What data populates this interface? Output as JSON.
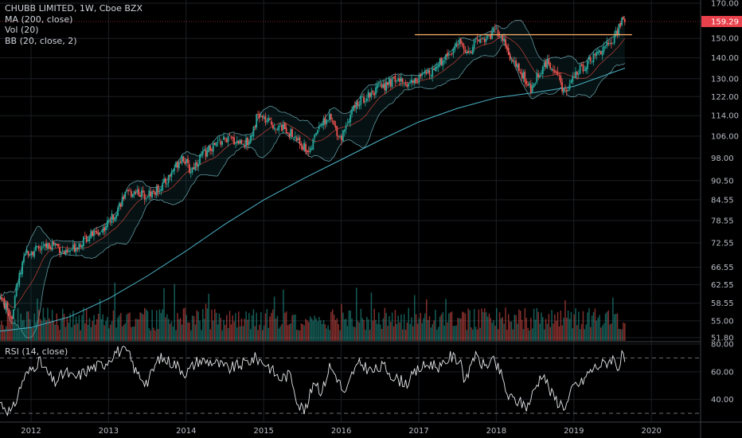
{
  "legend": {
    "title": "CHUBB LIMITED, 1W, Cboe BZX",
    "ma": "MA (200, close)",
    "vol": "Vol (20)",
    "bb": "BB (20, close, 2)"
  },
  "rsi_legend": "RSI (14, close)",
  "colors": {
    "background": "#000000",
    "up": "#26a69a",
    "down": "#ef5350",
    "ma": "#4bb4c8",
    "bb_band": "#7fc6d0",
    "bb_mid": "#d9453d",
    "resistance": "#f0a868",
    "price_badge": "#e8414b",
    "grid": "#1c1f24"
  },
  "chart_data": [
    {
      "type": "candlestick",
      "title": "CHUBB LIMITED, 1W, Cboe BZX",
      "scale": "log",
      "y_ticks": [
        "170.00",
        "159.29",
        "150.00",
        "140.00",
        "130.00",
        "122.00",
        "114.00",
        "106.00",
        "98.00",
        "90.50",
        "84.55",
        "78.55",
        "72.55",
        "66.55",
        "62.55",
        "58.55",
        "55.00",
        "51.80"
      ],
      "y_tick_values": [
        170.0,
        150.0,
        140.0,
        130.0,
        122.0,
        114.0,
        106.0,
        98.0,
        90.5,
        84.55,
        78.55,
        72.55,
        66.55,
        62.55,
        58.55,
        55.0,
        51.8
      ],
      "ylim": [
        51.8,
        170.0
      ],
      "last_price": "159.29",
      "last_price_value": 159.29,
      "x_ticks": [
        "2012",
        "2013",
        "2014",
        "2015",
        "2016",
        "2017",
        "2018",
        "2019",
        "2020"
      ],
      "x_tick_years": [
        2012,
        2013,
        2014,
        2015,
        2016,
        2017,
        2018,
        2019,
        2020
      ],
      "x_range": [
        2011.6,
        2020.6
      ],
      "close_path": [
        [
          2011.6,
          60.0
        ],
        [
          2011.75,
          55.5
        ],
        [
          2011.82,
          62.5
        ],
        [
          2011.95,
          70.5
        ],
        [
          2012.1,
          70.8
        ],
        [
          2012.3,
          72.5
        ],
        [
          2012.45,
          69.5
        ],
        [
          2012.6,
          72.0
        ],
        [
          2012.75,
          74.5
        ],
        [
          2012.9,
          75.5
        ],
        [
          2013.05,
          79.5
        ],
        [
          2013.2,
          85.5
        ],
        [
          2013.35,
          87.5
        ],
        [
          2013.45,
          86.0
        ],
        [
          2013.6,
          87.0
        ],
        [
          2013.75,
          90.5
        ],
        [
          2013.95,
          99.0
        ],
        [
          2014.05,
          93.5
        ],
        [
          2014.2,
          99.0
        ],
        [
          2014.35,
          102.0
        ],
        [
          2014.5,
          105.0
        ],
        [
          2014.6,
          104.5
        ],
        [
          2014.8,
          103.5
        ],
        [
          2014.92,
          114.0
        ],
        [
          2015.05,
          111.5
        ],
        [
          2015.15,
          110.0
        ],
        [
          2015.3,
          108.5
        ],
        [
          2015.45,
          104.0
        ],
        [
          2015.6,
          100.0
        ],
        [
          2015.7,
          110.0
        ],
        [
          2015.85,
          113.0
        ],
        [
          2016.0,
          105.0
        ],
        [
          2016.05,
          110.0
        ],
        [
          2016.15,
          117.0
        ],
        [
          2016.35,
          123.0
        ],
        [
          2016.5,
          126.0
        ],
        [
          2016.7,
          129.5
        ],
        [
          2016.85,
          128.0
        ],
        [
          2017.0,
          130.0
        ],
        [
          2017.2,
          135.0
        ],
        [
          2017.4,
          143.0
        ],
        [
          2017.55,
          147.5
        ],
        [
          2017.65,
          142.0
        ],
        [
          2017.75,
          149.0
        ],
        [
          2017.9,
          151.0
        ],
        [
          2018.0,
          154.0
        ],
        [
          2018.1,
          148.0
        ],
        [
          2018.2,
          138.0
        ],
        [
          2018.35,
          131.0
        ],
        [
          2018.45,
          124.5
        ],
        [
          2018.55,
          133.0
        ],
        [
          2018.65,
          137.5
        ],
        [
          2018.75,
          135.0
        ],
        [
          2018.85,
          126.0
        ],
        [
          2018.9,
          124.0
        ],
        [
          2019.0,
          130.5
        ],
        [
          2019.1,
          135.0
        ],
        [
          2019.25,
          140.5
        ],
        [
          2019.4,
          146.0
        ],
        [
          2019.5,
          148.0
        ],
        [
          2019.55,
          153.5
        ],
        [
          2019.62,
          160.5
        ],
        [
          2019.66,
          159.29
        ]
      ],
      "ma200_path": [
        [
          2011.6,
          53.0
        ],
        [
          2012.0,
          53.7
        ],
        [
          2012.5,
          55.8
        ],
        [
          2013.0,
          59.5
        ],
        [
          2013.5,
          64.5
        ],
        [
          2014.0,
          70.5
        ],
        [
          2014.5,
          77.5
        ],
        [
          2015.0,
          84.5
        ],
        [
          2015.5,
          91.0
        ],
        [
          2016.0,
          97.5
        ],
        [
          2016.5,
          104.5
        ],
        [
          2017.0,
          111.5
        ],
        [
          2017.5,
          117.0
        ],
        [
          2018.0,
          121.5
        ],
        [
          2018.5,
          123.8
        ],
        [
          2019.0,
          126.5
        ],
        [
          2019.66,
          135.0
        ]
      ],
      "resistance": {
        "from": 2016.95,
        "to": 2019.75,
        "value": 152.0
      }
    },
    {
      "type": "bar",
      "title": "Vol (20)",
      "note": "volume histogram at bottom of price pane"
    },
    {
      "type": "line",
      "title": "RSI (14, close)",
      "y_ticks": [
        "80.00",
        "60.00",
        "40.00"
      ],
      "y_tick_values": [
        80,
        60,
        40
      ],
      "ylim": [
        26,
        80
      ],
      "bands": [
        70,
        30
      ],
      "rsi_path": [
        [
          2011.6,
          38
        ],
        [
          2011.75,
          30
        ],
        [
          2011.9,
          55
        ],
        [
          2012.1,
          68
        ],
        [
          2012.3,
          52
        ],
        [
          2012.45,
          60
        ],
        [
          2012.55,
          55
        ],
        [
          2012.75,
          62
        ],
        [
          2012.95,
          66
        ],
        [
          2013.1,
          75
        ],
        [
          2013.25,
          74
        ],
        [
          2013.35,
          60
        ],
        [
          2013.5,
          52
        ],
        [
          2013.65,
          70
        ],
        [
          2013.85,
          66
        ],
        [
          2014.0,
          59
        ],
        [
          2014.15,
          68
        ],
        [
          2014.35,
          67
        ],
        [
          2014.55,
          62
        ],
        [
          2014.75,
          66
        ],
        [
          2014.9,
          70
        ],
        [
          2015.05,
          65
        ],
        [
          2015.2,
          55
        ],
        [
          2015.35,
          58
        ],
        [
          2015.45,
          36
        ],
        [
          2015.55,
          32
        ],
        [
          2015.65,
          55
        ],
        [
          2015.75,
          45
        ],
        [
          2015.85,
          64
        ],
        [
          2015.95,
          56
        ],
        [
          2016.05,
          42
        ],
        [
          2016.15,
          60
        ],
        [
          2016.25,
          66
        ],
        [
          2016.4,
          60
        ],
        [
          2016.55,
          64
        ],
        [
          2016.7,
          55
        ],
        [
          2016.85,
          52
        ],
        [
          2017.0,
          62
        ],
        [
          2017.15,
          66
        ],
        [
          2017.3,
          63
        ],
        [
          2017.4,
          71
        ],
        [
          2017.55,
          68
        ],
        [
          2017.6,
          50
        ],
        [
          2017.7,
          72
        ],
        [
          2017.85,
          64
        ],
        [
          2017.95,
          68
        ],
        [
          2018.05,
          60
        ],
        [
          2018.15,
          42
        ],
        [
          2018.3,
          38
        ],
        [
          2018.4,
          35
        ],
        [
          2018.5,
          48
        ],
        [
          2018.6,
          60
        ],
        [
          2018.7,
          45
        ],
        [
          2018.8,
          38
        ],
        [
          2018.9,
          35
        ],
        [
          2019.0,
          50
        ],
        [
          2019.1,
          52
        ],
        [
          2019.2,
          60
        ],
        [
          2019.3,
          64
        ],
        [
          2019.4,
          66
        ],
        [
          2019.5,
          70
        ],
        [
          2019.58,
          63
        ],
        [
          2019.62,
          71
        ],
        [
          2019.66,
          68
        ]
      ]
    }
  ]
}
